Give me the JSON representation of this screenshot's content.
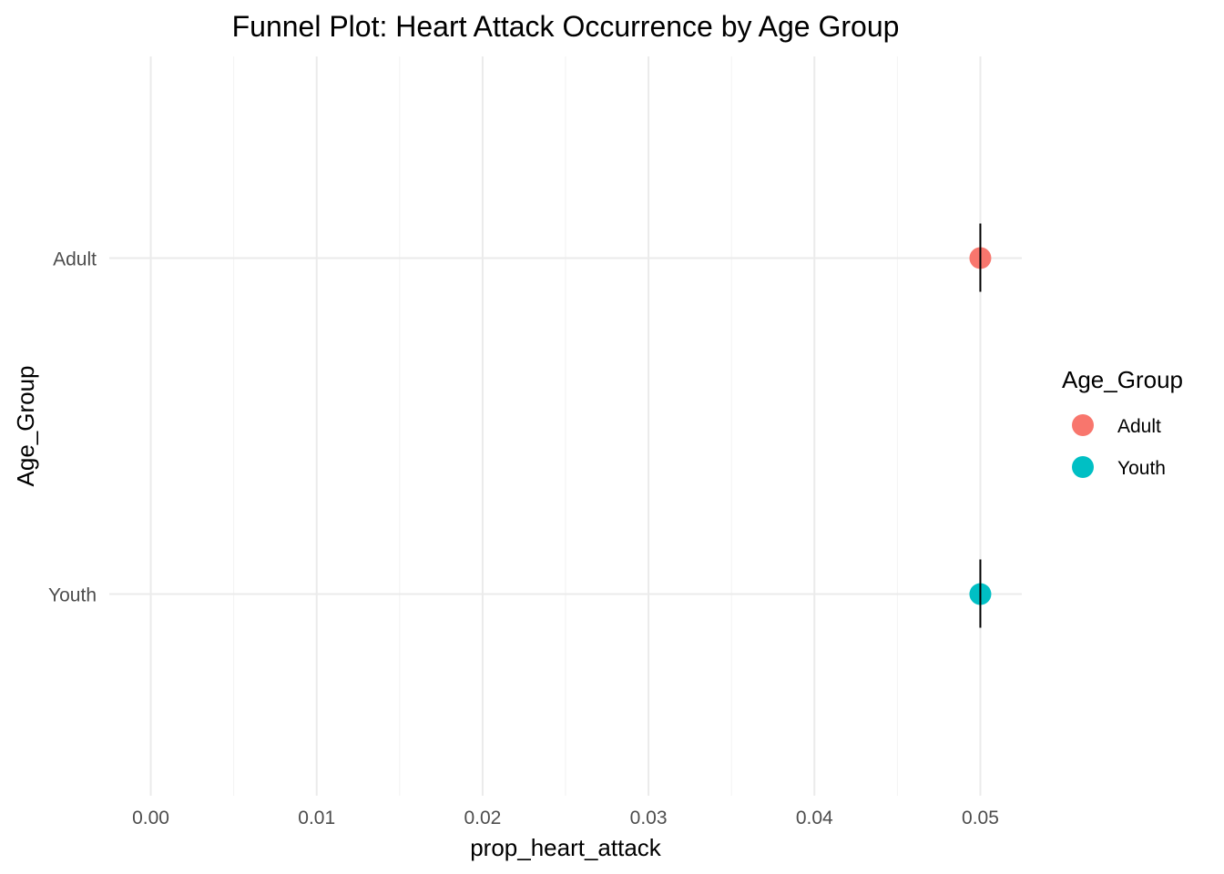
{
  "chart_data": {
    "type": "scatter",
    "title": "Funnel Plot: Heart Attack Occurrence by Age Group",
    "xlabel": "prop_heart_attack",
    "ylabel": "Age_Group",
    "xlim": [
      -0.0025,
      0.0525
    ],
    "x_ticks": [
      0.0,
      0.01,
      0.02,
      0.03,
      0.04,
      0.05
    ],
    "x_tick_labels": [
      "0.00",
      "0.01",
      "0.02",
      "0.03",
      "0.04",
      "0.05"
    ],
    "categories": [
      "Adult",
      "Youth"
    ],
    "grid": true,
    "legend": {
      "title": "Age_Group",
      "position": "right",
      "entries": [
        "Adult",
        "Youth"
      ]
    },
    "series": [
      {
        "name": "Adult",
        "category": "Adult",
        "x": 0.05,
        "error_bar": true,
        "color": "#F8766D"
      },
      {
        "name": "Youth",
        "category": "Youth",
        "x": 0.05,
        "error_bar": true,
        "color": "#00BFC4"
      }
    ]
  }
}
